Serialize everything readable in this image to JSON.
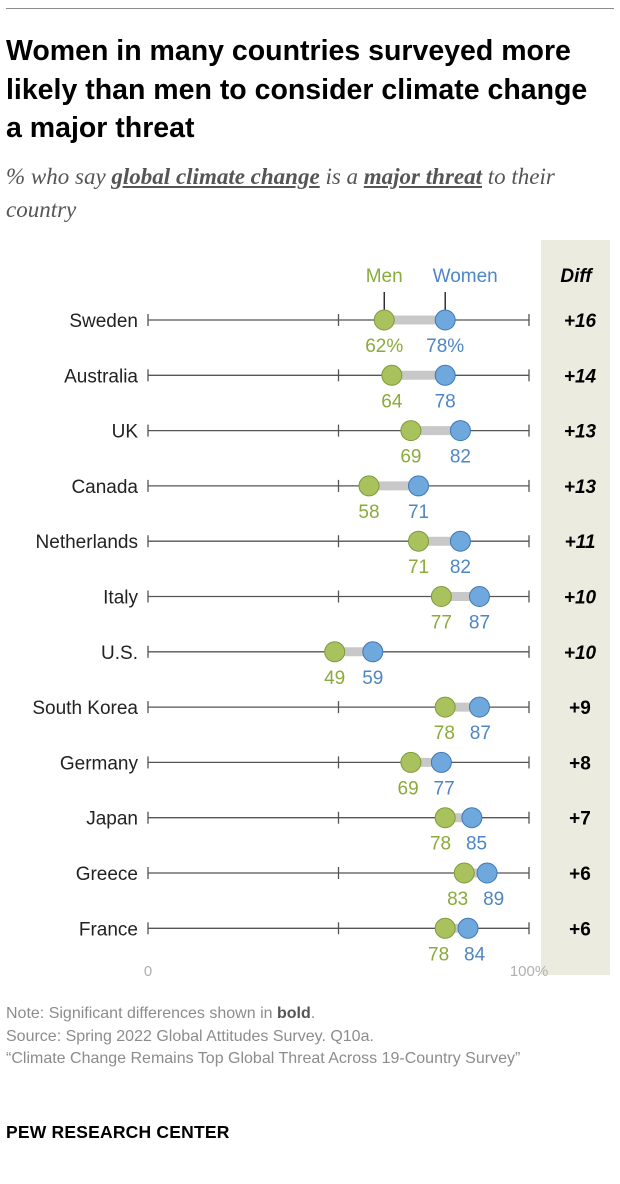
{
  "title": "Women in many countries surveyed more likely than men to consider climate change a major threat",
  "subtitle": {
    "prefix": "% who say ",
    "term1": "global climate change",
    "middle": " is a ",
    "term2": "major threat",
    "suffix": " to their country"
  },
  "notes": {
    "note_prefix": "Note: Significant differences shown in ",
    "note_bold": "bold",
    "note_suffix": ".",
    "source": "Source: Spring 2022 Global Attitudes Survey. Q10a.",
    "report": "“Climate Change Remains Top Global Threat Across 19-Country Survey”"
  },
  "brand": "PEW RESEARCH CENTER",
  "colors": {
    "men": "#a9c25d",
    "women": "#6fa8dc",
    "men_text": "#8aab3b",
    "women_text": "#4e86c4",
    "diff_panel": "#ecebdf",
    "axis": "#555555",
    "connector": "#c8c8c8"
  },
  "chart_data": {
    "type": "dot",
    "legend": {
      "men": "Men",
      "women": "Women"
    },
    "diff_header": "Diff",
    "xlim": [
      0,
      100
    ],
    "x_tick_labels": [
      "0",
      "100%"
    ],
    "value_suffix_first_row": "%",
    "categories": [
      "Sweden",
      "Australia",
      "UK",
      "Canada",
      "Netherlands",
      "Italy",
      "U.S.",
      "South Korea",
      "Germany",
      "Japan",
      "Greece",
      "France"
    ],
    "series": [
      {
        "name": "Men",
        "values": [
          62,
          64,
          69,
          58,
          71,
          77,
          49,
          78,
          69,
          78,
          83,
          78
        ]
      },
      {
        "name": "Women",
        "values": [
          78,
          78,
          82,
          71,
          82,
          87,
          59,
          87,
          77,
          85,
          89,
          84
        ]
      }
    ],
    "diff": [
      "+16",
      "+14",
      "+13",
      "+13",
      "+11",
      "+10",
      "+10",
      "+9",
      "+8",
      "+7",
      "+6",
      "+6"
    ],
    "significant": [
      true,
      true,
      true,
      true,
      true,
      true,
      true,
      false,
      false,
      false,
      false,
      false
    ]
  }
}
